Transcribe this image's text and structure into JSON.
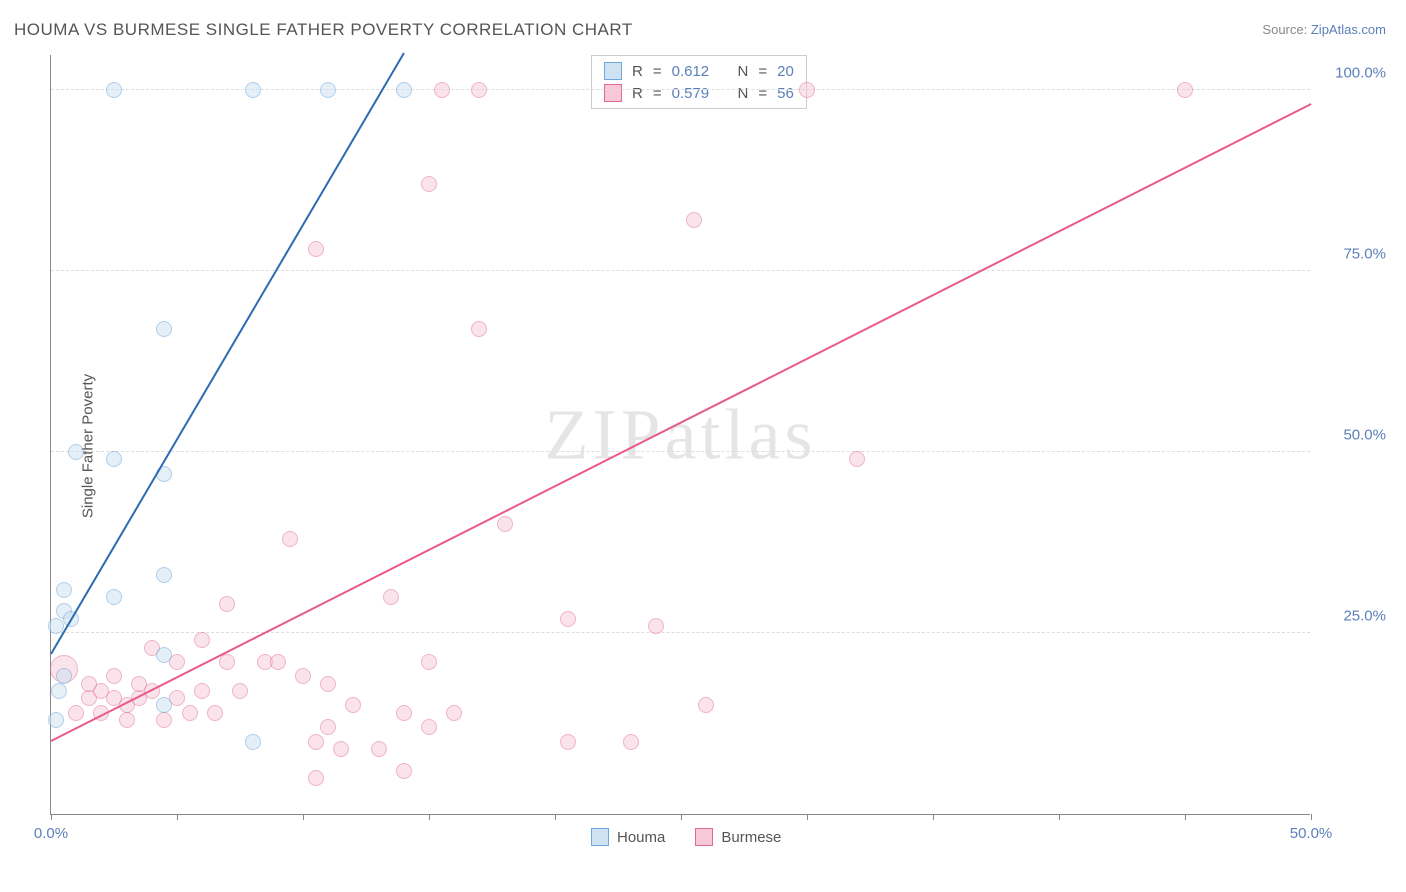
{
  "title": "HOUMA VS BURMESE SINGLE FATHER POVERTY CORRELATION CHART",
  "source_label": "Source:",
  "source_name": "ZipAtlas.com",
  "ylabel": "Single Father Poverty",
  "watermark": "ZIPatlas",
  "chart": {
    "type": "scatter",
    "xlim": [
      0,
      50
    ],
    "ylim": [
      0,
      105
    ],
    "xtick_positions": [
      0,
      5,
      10,
      15,
      20,
      25,
      30,
      35,
      40,
      45,
      50
    ],
    "xtick_labels": {
      "0": "0.0%",
      "50": "50.0%"
    },
    "ytick_positions": [
      25,
      50,
      75,
      100
    ],
    "ytick_labels": [
      "25.0%",
      "50.0%",
      "75.0%",
      "100.0%"
    ],
    "grid_color": "#dddddd",
    "axis_color": "#888888",
    "background": "#ffffff",
    "tick_label_color": "#5b7fb9",
    "tick_label_fontsize": 15,
    "title_fontsize": 17,
    "title_color": "#555555",
    "ylabel_fontsize": 15,
    "ylabel_color": "#555555"
  },
  "series": {
    "houma": {
      "label": "Houma",
      "fill": "#cfe2f3",
      "stroke": "#6fa8dc",
      "fill_opacity": 0.55,
      "marker_radius": 8,
      "trend": {
        "x1": 0,
        "y1": 22,
        "x2": 14,
        "y2": 105,
        "color": "#2b6cb0",
        "width": 2
      },
      "R": "0.612",
      "N": "20",
      "points": [
        {
          "x": 2.5,
          "y": 100
        },
        {
          "x": 8.0,
          "y": 100
        },
        {
          "x": 11.0,
          "y": 100
        },
        {
          "x": 14.0,
          "y": 100
        },
        {
          "x": 4.5,
          "y": 67
        },
        {
          "x": 1.0,
          "y": 50
        },
        {
          "x": 2.5,
          "y": 49
        },
        {
          "x": 4.5,
          "y": 47
        },
        {
          "x": 4.5,
          "y": 33
        },
        {
          "x": 0.5,
          "y": 31
        },
        {
          "x": 2.5,
          "y": 30
        },
        {
          "x": 0.5,
          "y": 28
        },
        {
          "x": 0.8,
          "y": 27
        },
        {
          "x": 0.2,
          "y": 26
        },
        {
          "x": 0.5,
          "y": 19
        },
        {
          "x": 4.5,
          "y": 22
        },
        {
          "x": 0.3,
          "y": 17
        },
        {
          "x": 0.2,
          "y": 13
        },
        {
          "x": 8.0,
          "y": 10
        },
        {
          "x": 4.5,
          "y": 15
        }
      ]
    },
    "burmese": {
      "label": "Burmese",
      "fill": "#f8c8d8",
      "stroke": "#e06a8f",
      "fill_opacity": 0.5,
      "marker_radius": 8,
      "trend": {
        "x1": 0,
        "y1": 10,
        "x2": 50,
        "y2": 98,
        "color": "#e85a8a",
        "width": 2
      },
      "R": "0.579",
      "N": "56",
      "points": [
        {
          "x": 15.5,
          "y": 100
        },
        {
          "x": 17.0,
          "y": 100
        },
        {
          "x": 30.0,
          "y": 100
        },
        {
          "x": 45.0,
          "y": 100
        },
        {
          "x": 15.0,
          "y": 87
        },
        {
          "x": 10.5,
          "y": 78
        },
        {
          "x": 17.0,
          "y": 67
        },
        {
          "x": 25.5,
          "y": 82
        },
        {
          "x": 32.0,
          "y": 49
        },
        {
          "x": 18.0,
          "y": 40
        },
        {
          "x": 9.5,
          "y": 38
        },
        {
          "x": 20.5,
          "y": 27
        },
        {
          "x": 24.0,
          "y": 26
        },
        {
          "x": 13.5,
          "y": 30
        },
        {
          "x": 7.0,
          "y": 29
        },
        {
          "x": 6.0,
          "y": 24
        },
        {
          "x": 4.0,
          "y": 23
        },
        {
          "x": 8.5,
          "y": 21
        },
        {
          "x": 9.0,
          "y": 21
        },
        {
          "x": 15.0,
          "y": 21
        },
        {
          "x": 14.0,
          "y": 14
        },
        {
          "x": 26.0,
          "y": 15
        },
        {
          "x": 10.0,
          "y": 19
        },
        {
          "x": 11.0,
          "y": 18
        },
        {
          "x": 12.0,
          "y": 15
        },
        {
          "x": 11.5,
          "y": 9
        },
        {
          "x": 13.0,
          "y": 9
        },
        {
          "x": 15.0,
          "y": 12
        },
        {
          "x": 20.5,
          "y": 10
        },
        {
          "x": 23.0,
          "y": 10
        },
        {
          "x": 14.0,
          "y": 6
        },
        {
          "x": 10.5,
          "y": 5
        },
        {
          "x": 0.5,
          "y": 20,
          "r": 14
        },
        {
          "x": 1.5,
          "y": 16
        },
        {
          "x": 2.0,
          "y": 17
        },
        {
          "x": 2.5,
          "y": 16
        },
        {
          "x": 3.0,
          "y": 15
        },
        {
          "x": 1.0,
          "y": 14
        },
        {
          "x": 2.0,
          "y": 14
        },
        {
          "x": 3.5,
          "y": 16
        },
        {
          "x": 4.0,
          "y": 17
        },
        {
          "x": 1.5,
          "y": 18
        },
        {
          "x": 2.5,
          "y": 19
        },
        {
          "x": 3.0,
          "y": 13
        },
        {
          "x": 4.5,
          "y": 13
        },
        {
          "x": 3.5,
          "y": 18
        },
        {
          "x": 5.0,
          "y": 16
        },
        {
          "x": 5.5,
          "y": 14
        },
        {
          "x": 6.0,
          "y": 17
        },
        {
          "x": 6.5,
          "y": 14
        },
        {
          "x": 7.5,
          "y": 17
        },
        {
          "x": 7.0,
          "y": 21
        },
        {
          "x": 5.0,
          "y": 21
        },
        {
          "x": 11.0,
          "y": 12
        },
        {
          "x": 16.0,
          "y": 14
        },
        {
          "x": 10.5,
          "y": 10
        }
      ]
    }
  },
  "stats_box": {
    "r_label": "R",
    "n_label": "N",
    "eq": "="
  },
  "legend": {
    "houma": "Houma",
    "burmese": "Burmese"
  }
}
